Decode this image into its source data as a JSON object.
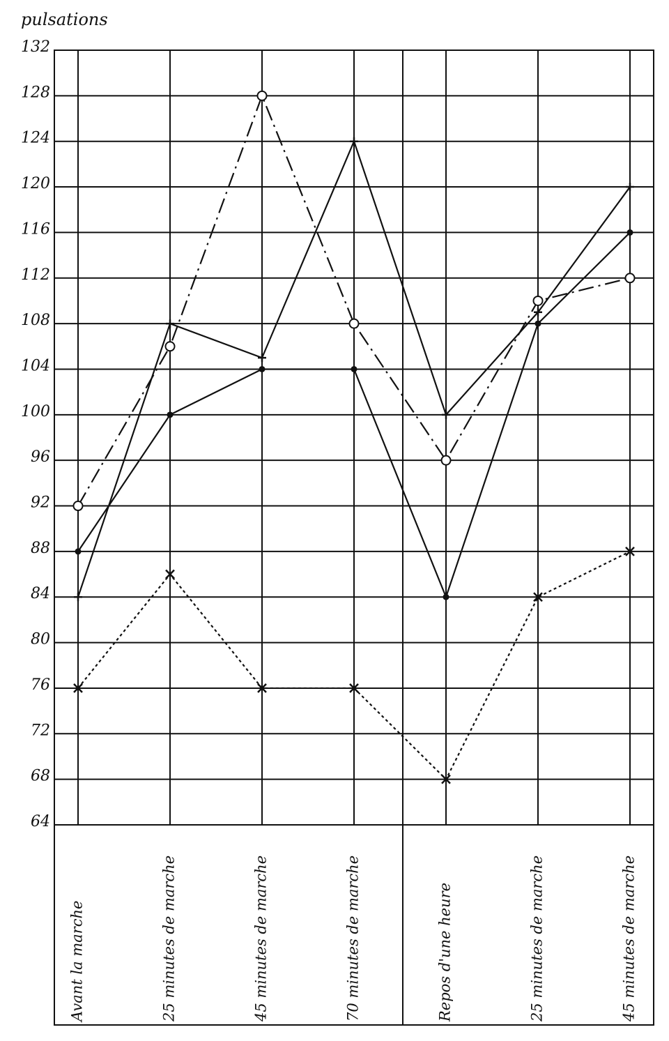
{
  "chart_data": {
    "type": "line",
    "y_label": "pulsations",
    "categories": [
      "Avant  la marche",
      "25 minutes de marche",
      "45 minutes de marche",
      "70 minutes de marche",
      "Repos d'une heure",
      "25 minutes de marche",
      "45 minutes de marche"
    ],
    "series": [
      {
        "color": "#111111",
        "marker": "dot",
        "line_style": "solid",
        "values": [
          88,
          100,
          104,
          104,
          84,
          108,
          116
        ]
      },
      {
        "color": "#111111",
        "marker": "plus",
        "line_style": "solid",
        "values": [
          84,
          108,
          105,
          124,
          100,
          109,
          120
        ]
      },
      {
        "color": "#111111",
        "marker": "circle",
        "line_style": "dash-dot",
        "values": [
          92,
          106,
          128,
          108,
          96,
          110,
          112
        ]
      },
      {
        "color": "#111111",
        "marker": "cross",
        "line_style": "dotted",
        "values": [
          76,
          86,
          76,
          76,
          68,
          84,
          88
        ]
      }
    ],
    "ylim": [
      64,
      132
    ],
    "yticks": [
      64,
      68,
      72,
      76,
      80,
      84,
      88,
      92,
      96,
      100,
      104,
      108,
      112,
      116,
      120,
      124,
      128,
      132
    ],
    "grid": true
  }
}
